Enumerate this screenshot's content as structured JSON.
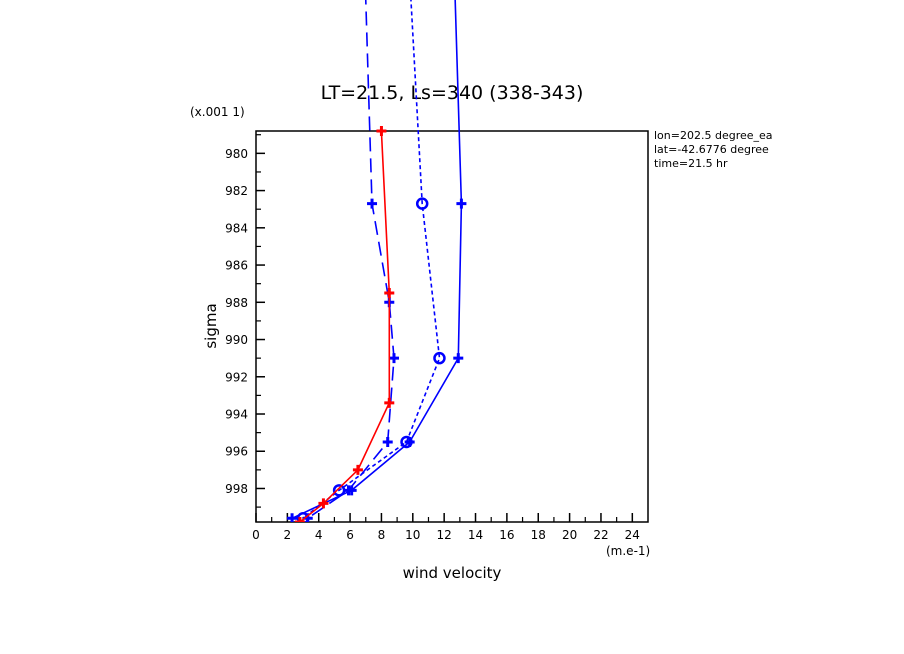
{
  "chart_data": {
    "type": "line",
    "title": "LT=21.5, Ls=340 (338-343)",
    "xlabel": "wind velocity",
    "ylabel": "sigma",
    "x_unit_label": "(m.e-1)",
    "y_unit_label": "(x.001 1)",
    "xlim": [
      0,
      25
    ],
    "ylim": [
      999.8,
      978.8
    ],
    "x_ticks": [
      0,
      2,
      4,
      6,
      8,
      10,
      12,
      14,
      16,
      18,
      20,
      22,
      24
    ],
    "y_ticks": [
      980,
      982,
      984,
      986,
      988,
      990,
      992,
      994,
      996,
      998
    ],
    "info": [
      "lon=202.5 degree_ea",
      "lat=-42.6776 degree",
      "time=21.5 hr"
    ],
    "grid": false,
    "series": [
      {
        "color": "#0000ff",
        "dash": "14,7",
        "marker": "cross",
        "points": [
          [
            6.9,
            969
          ],
          [
            7.4,
            982.7
          ],
          [
            8.5,
            988
          ],
          [
            8.8,
            991
          ],
          [
            8.4,
            995.5
          ],
          [
            5.9,
            998.1
          ],
          [
            3.3,
            999.6
          ]
        ]
      },
      {
        "color": "#0000ff",
        "dash": "4,3",
        "marker": "circle",
        "points": [
          [
            9.7,
            969
          ],
          [
            10.6,
            982.7
          ],
          [
            11.7,
            991
          ],
          [
            9.6,
            995.5
          ],
          [
            5.3,
            998.1
          ],
          [
            3.0,
            999.6
          ]
        ]
      },
      {
        "color": "#0000ff",
        "dash": "",
        "marker": "cross",
        "points": [
          [
            12.6,
            969
          ],
          [
            13.1,
            982.7
          ],
          [
            12.9,
            991
          ],
          [
            9.8,
            995.5
          ],
          [
            6.1,
            998.1
          ],
          [
            2.3,
            999.6
          ]
        ]
      },
      {
        "color": "#ff0000",
        "dash": "",
        "marker": "cross",
        "points": [
          [
            8.0,
            978.8
          ],
          [
            8.5,
            987.5
          ],
          [
            8.5,
            993.4
          ],
          [
            6.5,
            997
          ],
          [
            4.3,
            998.8
          ],
          [
            2.8,
            999.8
          ]
        ]
      }
    ]
  }
}
